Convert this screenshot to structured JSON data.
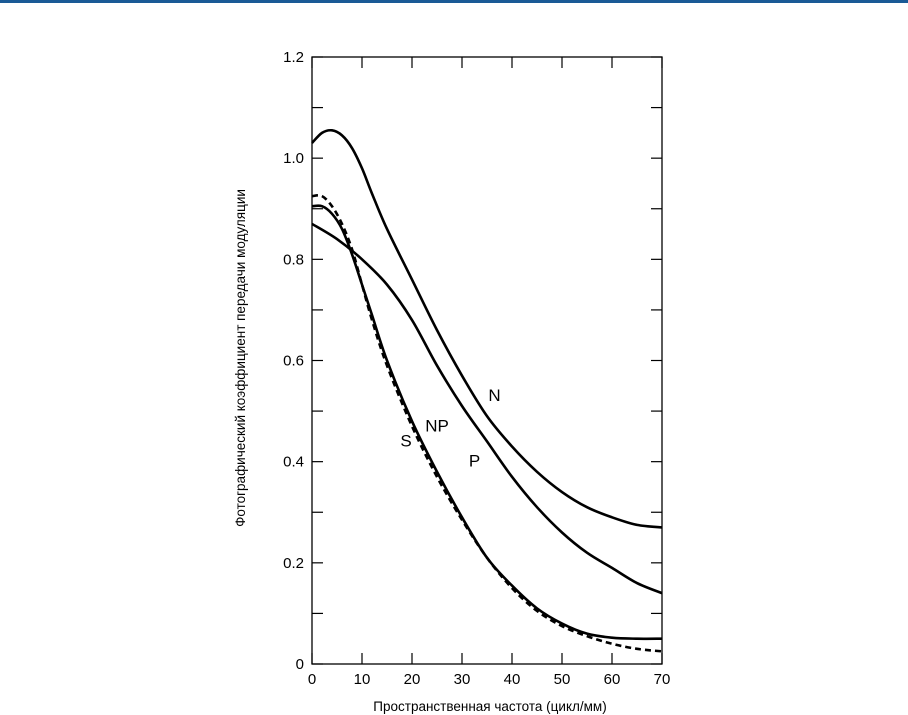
{
  "colors": {
    "top_rule": "#1a5a96",
    "ink": "#000000"
  },
  "chart_data": {
    "type": "line",
    "title": "",
    "xlabel": "Пространственная частота (цикл/мм)",
    "ylabel": "Фотографический коэффициент передачи модуляции",
    "xlim": [
      0,
      70
    ],
    "ylim": [
      0,
      1.2
    ],
    "xticks": [
      0,
      10,
      20,
      30,
      40,
      50,
      60,
      70
    ],
    "xtick_labels": [
      "0",
      "10",
      "20",
      "30",
      "40",
      "50",
      "60",
      "70"
    ],
    "yticks": [
      0,
      0.1,
      0.2,
      0.3,
      0.4,
      0.5,
      0.6,
      0.7,
      0.8,
      0.9,
      1.0,
      1.1,
      1.2
    ],
    "ytick_labels": [
      "0",
      "",
      "0.2",
      "",
      "0.4",
      "",
      "0.6",
      "",
      "0.8",
      "",
      "1.0",
      "",
      "1.2"
    ],
    "grid": false,
    "series": [
      {
        "name": "N",
        "style": "solid",
        "x": [
          0,
          2,
          4,
          6,
          8,
          10,
          12,
          15,
          20,
          25,
          30,
          35,
          40,
          45,
          50,
          55,
          60,
          65,
          70
        ],
        "y": [
          1.03,
          1.05,
          1.055,
          1.045,
          1.02,
          0.98,
          0.93,
          0.86,
          0.76,
          0.66,
          0.57,
          0.49,
          0.43,
          0.38,
          0.34,
          0.31,
          0.29,
          0.275,
          0.27
        ]
      },
      {
        "name": "P",
        "style": "solid",
        "x": [
          0,
          5,
          10,
          15,
          20,
          25,
          30,
          35,
          40,
          45,
          50,
          55,
          60,
          65,
          70
        ],
        "y": [
          0.87,
          0.84,
          0.8,
          0.75,
          0.68,
          0.59,
          0.51,
          0.44,
          0.37,
          0.31,
          0.26,
          0.22,
          0.19,
          0.16,
          0.14
        ]
      },
      {
        "name": "NP",
        "style": "solid",
        "x": [
          0,
          2,
          4,
          6,
          8,
          10,
          12,
          15,
          20,
          25,
          30,
          35,
          40,
          45,
          50,
          55,
          60,
          65,
          70
        ],
        "y": [
          0.905,
          0.905,
          0.89,
          0.86,
          0.81,
          0.75,
          0.69,
          0.6,
          0.48,
          0.38,
          0.29,
          0.21,
          0.155,
          0.11,
          0.08,
          0.06,
          0.052,
          0.05,
          0.05
        ]
      },
      {
        "name": "S",
        "style": "dashed",
        "x": [
          0,
          2,
          4,
          6,
          8,
          10,
          12,
          15,
          20,
          25,
          30,
          35,
          40,
          45,
          50,
          55,
          60,
          65,
          70
        ],
        "y": [
          0.925,
          0.925,
          0.905,
          0.87,
          0.82,
          0.75,
          0.68,
          0.59,
          0.47,
          0.37,
          0.285,
          0.21,
          0.15,
          0.105,
          0.075,
          0.055,
          0.04,
          0.03,
          0.025
        ]
      }
    ],
    "annotations": [
      {
        "text": "N",
        "x": 36.5,
        "y": 0.52
      },
      {
        "text": "NP",
        "x": 25.0,
        "y": 0.46
      },
      {
        "text": "S",
        "x": 18.8,
        "y": 0.43
      },
      {
        "text": "P",
        "x": 32.5,
        "y": 0.39
      }
    ]
  }
}
